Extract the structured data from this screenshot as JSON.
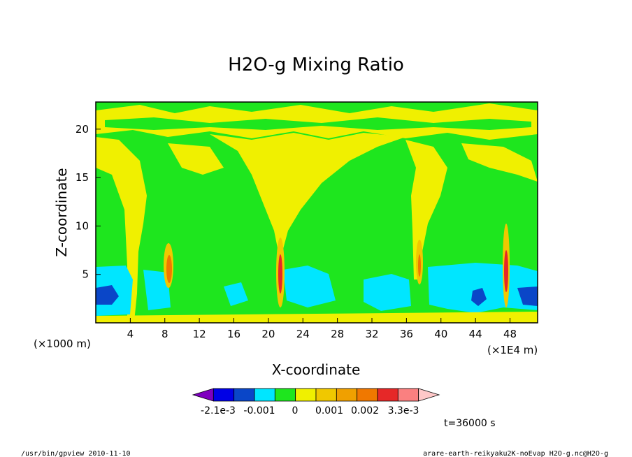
{
  "chart_data": {
    "type": "heatmap",
    "title": "H2O-g Mixing Ratio",
    "xlabel": "X-coordinate",
    "ylabel": "Z-coordinate",
    "x_unit_left": "(×1000 m)",
    "x_unit_right": "(×1E4 m)",
    "xlim": [
      0,
      51.2
    ],
    "ylim": [
      0,
      22.8
    ],
    "x_ticks": [
      "4",
      "8",
      "12",
      "16",
      "20",
      "24",
      "28",
      "32",
      "36",
      "40",
      "44",
      "48"
    ],
    "x_tick_values": [
      4,
      8,
      12,
      16,
      20,
      24,
      28,
      32,
      36,
      40,
      44,
      48
    ],
    "y_ticks": [
      "5",
      "10",
      "15",
      "20"
    ],
    "y_tick_values": [
      5,
      10,
      15,
      20
    ],
    "background_level": "0",
    "colorbar": {
      "labels": [
        "-2.1e-3",
        "-0.001",
        "0",
        "0.001",
        "0.002",
        "3.3e-3"
      ],
      "colors": [
        "#7f00bf",
        "#0000e6",
        "#0a46c8",
        "#00e6ff",
        "#1ee61e",
        "#f0f000",
        "#f0c800",
        "#f0a000",
        "#f07800",
        "#e62828",
        "#fa8080",
        "#ffc8c8"
      ]
    },
    "features": [
      {
        "name": "low-level moist band",
        "x_range": [
          0,
          51.2
        ],
        "z_range": [
          0,
          6
        ],
        "level": "-0.001"
      },
      {
        "name": "plume",
        "x": 4.5,
        "z_top": 14
      },
      {
        "name": "plume",
        "x": 8.5,
        "z_top": 8.5,
        "max_level": "0.002"
      },
      {
        "name": "plume",
        "x": 21,
        "z_top": 9,
        "max_level": "0.002"
      },
      {
        "name": "plume",
        "x": 37.5,
        "z_top": 9,
        "max_level": "0.002"
      },
      {
        "name": "plume",
        "x": 47.5,
        "z_top": 11,
        "max_level": "0.002"
      }
    ],
    "grid": false,
    "legend_position": "bottom"
  },
  "time_label": "t=36000 s",
  "footer": {
    "left": "/usr/bin/gpview  2010-11-10",
    "right": "arare-earth-reikyaku2K-noEvap_H2O-g.nc@H2O-g"
  }
}
